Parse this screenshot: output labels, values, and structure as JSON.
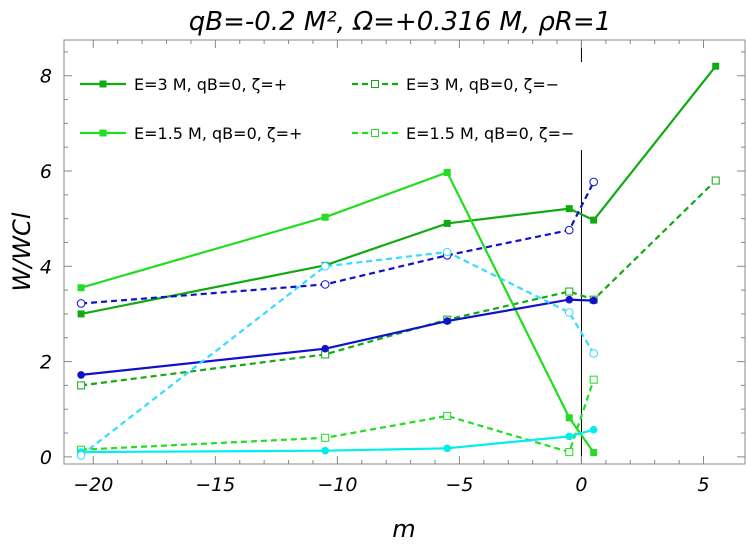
{
  "chart_data": {
    "type": "line",
    "title": "qB=-0.2 M², Ω=+0.316 M, ρR=1",
    "xlabel": "m",
    "ylabel": "W/WCl",
    "xlim": [
      -21.2,
      6.7
    ],
    "ylim": [
      -0.15,
      8.75
    ],
    "x_ticks": [
      -20,
      -15,
      -10,
      -5,
      0,
      5
    ],
    "x_tick_labels": [
      "−20",
      "−15",
      "−10",
      "−5",
      "0",
      "5"
    ],
    "y_ticks": [
      0,
      2,
      4,
      6,
      8
    ],
    "y_tick_labels": [
      "0",
      "2",
      "4",
      "6",
      "8"
    ],
    "grid": false,
    "reference_line_x": 0,
    "legend_position": "top-left",
    "series": [
      {
        "name": "E=3 M, qB=0, ζ=+",
        "color": "#11aa11",
        "dash": "solid",
        "marker": "square-filled",
        "in_legend": true,
        "x": [
          -20.5,
          -10.5,
          -5.5,
          -0.5,
          0.5,
          5.5
        ],
        "y": [
          3.0,
          4.02,
          4.9,
          5.21,
          4.97,
          8.2
        ]
      },
      {
        "name": "E=3 M, qB=0, ζ=−",
        "color": "#11aa11",
        "dash": "dashed",
        "marker": "square-open",
        "in_legend": true,
        "x": [
          -20.5,
          -10.5,
          -5.5,
          -0.5,
          0.5,
          5.5
        ],
        "y": [
          1.5,
          2.15,
          2.88,
          3.47,
          3.3,
          5.8
        ]
      },
      {
        "name": "E=1.5 M, qB=0, ζ=+",
        "color": "#22dd22",
        "dash": "solid",
        "marker": "square-filled",
        "in_legend": true,
        "x": [
          -20.5,
          -10.5,
          -5.5,
          -0.5,
          0.5
        ],
        "y": [
          3.55,
          5.03,
          5.97,
          0.82,
          0.09
        ]
      },
      {
        "name": "E=1.5 M, qB=0, ζ=−",
        "color": "#22dd22",
        "dash": "dashed",
        "marker": "square-open",
        "in_legend": true,
        "x": [
          -20.5,
          -10.5,
          -5.5,
          -0.5,
          0.5
        ],
        "y": [
          0.15,
          0.4,
          0.86,
          0.1,
          1.62
        ]
      },
      {
        "name": "",
        "color": "#1111cc",
        "dash": "solid",
        "marker": "circle-filled",
        "in_legend": false,
        "x": [
          -20.5,
          -10.5,
          -5.5,
          -0.5,
          0.5
        ],
        "y": [
          1.72,
          2.27,
          2.85,
          3.3,
          3.28
        ]
      },
      {
        "name": "",
        "color": "#1111cc",
        "dash": "dashed",
        "marker": "circle-open",
        "in_legend": false,
        "x": [
          -20.5,
          -10.5,
          -5.5,
          -0.5,
          0.5
        ],
        "y": [
          3.22,
          3.62,
          4.23,
          4.76,
          5.77
        ]
      },
      {
        "name": "",
        "color": "#00eeee",
        "dash": "solid",
        "marker": "circle-filled",
        "in_legend": false,
        "x": [
          -20.5,
          -10.5,
          -5.5,
          -0.5,
          0.5
        ],
        "y": [
          0.1,
          0.13,
          0.18,
          0.43,
          0.57
        ]
      },
      {
        "name": "",
        "color": "#33ddff",
        "dash": "dashed",
        "marker": "circle-open",
        "in_legend": false,
        "x": [
          -20.5,
          -10.5,
          -5.5,
          -0.5,
          0.5
        ],
        "y": [
          0.03,
          4.0,
          4.3,
          3.03,
          2.17
        ]
      }
    ]
  }
}
